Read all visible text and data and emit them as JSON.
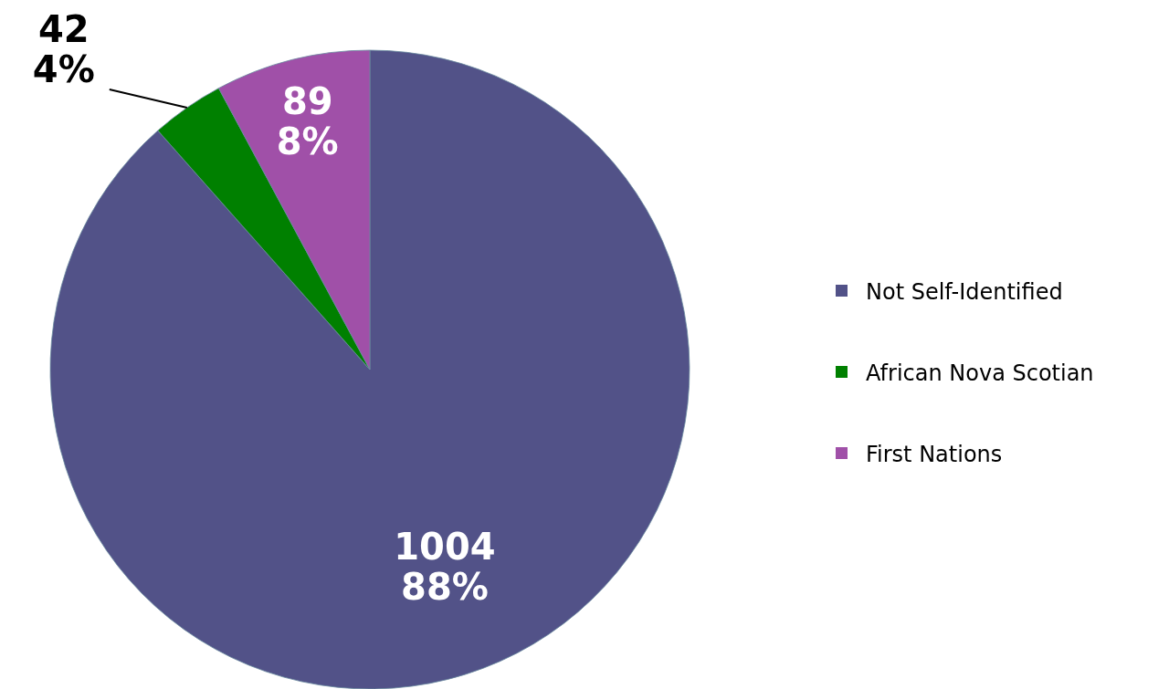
{
  "chart_data": {
    "type": "pie",
    "categories": [
      "Not Self-Identified",
      "African Nova Scotian",
      "First Nations"
    ],
    "values": [
      1004,
      42,
      89
    ],
    "colors": [
      "#525288",
      "#008000",
      "#a050a8"
    ],
    "value_labels": [
      "1004\n88%",
      "42\n4%",
      "89\n8%"
    ],
    "legend": "right"
  }
}
